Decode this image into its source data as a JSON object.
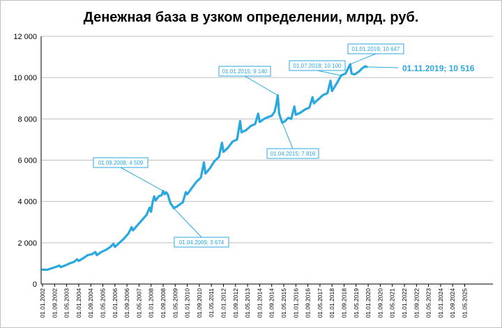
{
  "chart_data": {
    "type": "line",
    "title": "Денежная база в узком определении, млрд. руб.",
    "xlabel": "",
    "ylabel": "",
    "ylim": [
      0,
      12000
    ],
    "yticks": [
      0,
      2000,
      4000,
      6000,
      8000,
      10000,
      12000
    ],
    "ytick_labels": [
      "0",
      "2 000",
      "4 000",
      "6 000",
      "8 000",
      "10 000",
      "12 000"
    ],
    "x_tick_labels": [
      "01.01.2002",
      "01.09.2002",
      "01.05.2003",
      "01.01.2004",
      "01.09.2004",
      "01.05.2005",
      "01.01.2006",
      "01.09.2006",
      "01.05.2007",
      "01.01.2008",
      "01.09.2008",
      "01.05.2009",
      "01.01.2010",
      "01.09.2010",
      "01.05.2011",
      "01.01.2012",
      "01.09.2012",
      "01.05.2013",
      "01.01.2014",
      "01.09.2014",
      "01.05.2015",
      "01.01.2016",
      "01.09.2016",
      "01.05.2017",
      "01.01.2018",
      "01.09.2018",
      "01.05.2019",
      "01.01.2020",
      "01.09.2020",
      "01.05.2021",
      "01.01.2022",
      "01.09.2022",
      "01.05.2023",
      "01.01.2024",
      "01.09.2024",
      "01.05.2025"
    ],
    "grid": true,
    "series": [
      {
        "color": "#29a8e0",
        "points": [
          [
            2002.0,
            700
          ],
          [
            2002.25,
            690
          ],
          [
            2002.5,
            760
          ],
          [
            2002.75,
            830
          ],
          [
            2002.92,
            900
          ],
          [
            2003.0,
            820
          ],
          [
            2003.25,
            900
          ],
          [
            2003.5,
            1000
          ],
          [
            2003.75,
            1080
          ],
          [
            2003.92,
            1200
          ],
          [
            2004.0,
            1120
          ],
          [
            2004.25,
            1250
          ],
          [
            2004.5,
            1400
          ],
          [
            2004.75,
            1450
          ],
          [
            2004.92,
            1550
          ],
          [
            2005.0,
            1400
          ],
          [
            2005.25,
            1550
          ],
          [
            2005.5,
            1650
          ],
          [
            2005.75,
            1800
          ],
          [
            2005.92,
            1950
          ],
          [
            2006.0,
            1800
          ],
          [
            2006.25,
            2000
          ],
          [
            2006.5,
            2200
          ],
          [
            2006.75,
            2450
          ],
          [
            2006.92,
            2750
          ],
          [
            2007.0,
            2600
          ],
          [
            2007.25,
            2850
          ],
          [
            2007.5,
            3100
          ],
          [
            2007.75,
            3350
          ],
          [
            2007.92,
            3700
          ],
          [
            2008.0,
            3500
          ],
          [
            2008.08,
            3950
          ],
          [
            2008.17,
            4250
          ],
          [
            2008.25,
            4050
          ],
          [
            2008.42,
            4250
          ],
          [
            2008.58,
            4300
          ],
          [
            2008.67,
            4509
          ],
          [
            2008.75,
            4350
          ],
          [
            2008.83,
            4450
          ],
          [
            2008.92,
            4350
          ],
          [
            2009.0,
            4100
          ],
          [
            2009.08,
            3900
          ],
          [
            2009.17,
            3800
          ],
          [
            2009.25,
            3674
          ],
          [
            2009.42,
            3750
          ],
          [
            2009.58,
            3850
          ],
          [
            2009.75,
            3950
          ],
          [
            2009.92,
            4450
          ],
          [
            2010.0,
            4350
          ],
          [
            2010.25,
            4650
          ],
          [
            2010.5,
            4950
          ],
          [
            2010.75,
            5150
          ],
          [
            2010.92,
            5900
          ],
          [
            2011.0,
            5350
          ],
          [
            2011.25,
            5600
          ],
          [
            2011.5,
            5950
          ],
          [
            2011.75,
            6150
          ],
          [
            2011.92,
            6850
          ],
          [
            2012.0,
            6400
          ],
          [
            2012.25,
            6600
          ],
          [
            2012.5,
            6900
          ],
          [
            2012.75,
            7000
          ],
          [
            2012.92,
            7900
          ],
          [
            2013.0,
            7350
          ],
          [
            2013.25,
            7450
          ],
          [
            2013.5,
            7650
          ],
          [
            2013.75,
            7750
          ],
          [
            2013.92,
            8250
          ],
          [
            2014.0,
            7850
          ],
          [
            2014.25,
            8000
          ],
          [
            2014.5,
            8100
          ],
          [
            2014.67,
            8150
          ],
          [
            2014.83,
            8350
          ],
          [
            2014.92,
            8700
          ],
          [
            2015.0,
            9140
          ],
          [
            2015.08,
            8250
          ],
          [
            2015.17,
            8000
          ],
          [
            2015.25,
            7816
          ],
          [
            2015.42,
            7900
          ],
          [
            2015.58,
            8050
          ],
          [
            2015.75,
            8000
          ],
          [
            2015.92,
            8600
          ],
          [
            2016.0,
            8200
          ],
          [
            2016.25,
            8300
          ],
          [
            2016.5,
            8450
          ],
          [
            2016.75,
            8550
          ],
          [
            2016.92,
            9050
          ],
          [
            2017.0,
            8750
          ],
          [
            2017.25,
            8950
          ],
          [
            2017.5,
            9150
          ],
          [
            2017.75,
            9250
          ],
          [
            2017.92,
            9850
          ],
          [
            2018.0,
            9350
          ],
          [
            2018.25,
            9700
          ],
          [
            2018.5,
            10100
          ],
          [
            2018.75,
            10200
          ],
          [
            2018.92,
            10500
          ],
          [
            2019.0,
            10647
          ],
          [
            2019.08,
            10200
          ],
          [
            2019.25,
            10150
          ],
          [
            2019.5,
            10300
          ],
          [
            2019.67,
            10450
          ],
          [
            2019.83,
            10550
          ],
          [
            2019.92,
            10516
          ]
        ]
      }
    ],
    "annotations": [
      {
        "label": "01.09.2008; 4 509",
        "x": 2008.67,
        "y": 4509,
        "style": "normal"
      },
      {
        "label": "01.04.2009; 3 674",
        "x": 2009.25,
        "y": 3674,
        "style": "normal"
      },
      {
        "label": "01.01.2015; 9 140",
        "x": 2015.0,
        "y": 9140,
        "style": "normal"
      },
      {
        "label": "01.04.2015; 7 816",
        "x": 2015.25,
        "y": 7816,
        "style": "normal"
      },
      {
        "label": "01.07.2018; 10 100",
        "x": 2018.5,
        "y": 10100,
        "style": "normal"
      },
      {
        "label": "01.01.2019; 10 647",
        "x": 2019.0,
        "y": 10647,
        "style": "normal"
      },
      {
        "label": "01.11.2019; 10 516",
        "x": 2019.92,
        "y": 10516,
        "style": "big"
      }
    ]
  }
}
